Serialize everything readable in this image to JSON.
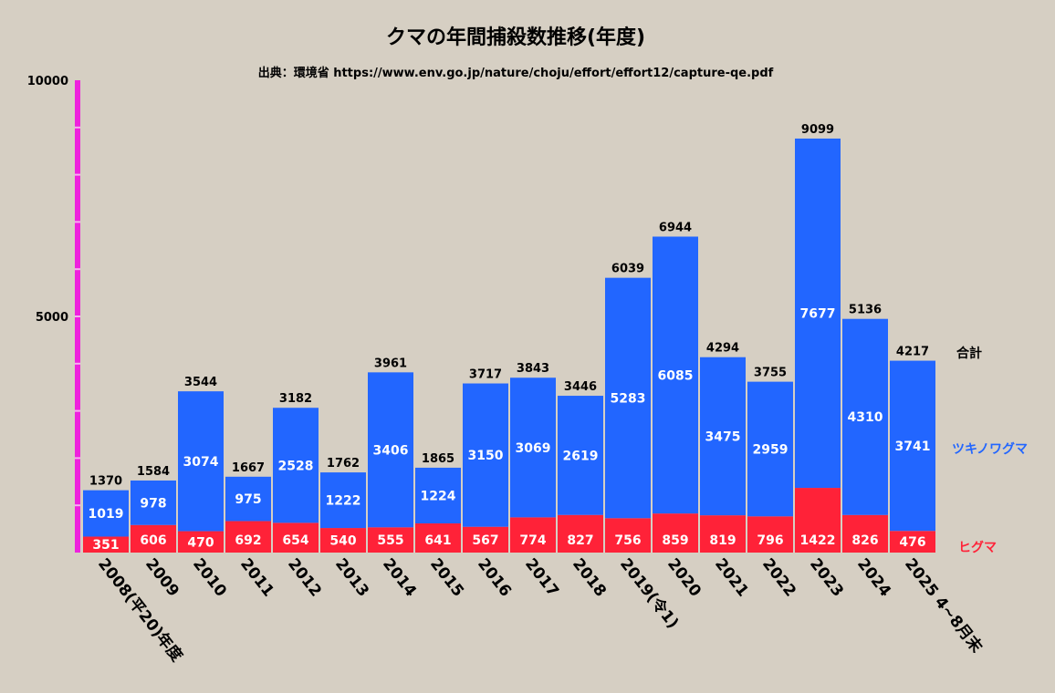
{
  "chart_data": {
    "type": "bar",
    "stacked": true,
    "title": "クマの年間捕殺数推移(年度)",
    "subtitle": "出典：環境省 https://www.env.go.jp/nature/choju/effort/effort12/capture-qe.pdf",
    "xlabel": "",
    "ylabel": "",
    "ylim": [
      0,
      10000
    ],
    "yticks": [
      {
        "value": 10000,
        "label": "10000"
      },
      {
        "value": 5000,
        "label": "5000"
      }
    ],
    "minor_tick_step": 1000,
    "grid": false,
    "categories": [
      "2008(平20)年度",
      "2009",
      "2010",
      "2011",
      "2012",
      "2013",
      "2014",
      "2015",
      "2016",
      "2017",
      "2018",
      "2019(令1)",
      "2020",
      "2021",
      "2022",
      "2023",
      "2024",
      "2025 4~8月末"
    ],
    "series": [
      {
        "name": "ヒグマ",
        "color": "#ff2238",
        "values": [
          351,
          606,
          470,
          692,
          654,
          540,
          555,
          641,
          567,
          774,
          827,
          756,
          859,
          819,
          796,
          1422,
          826,
          476
        ]
      },
      {
        "name": "ツキノワグマ",
        "color": "#2266ff",
        "values": [
          1019,
          978,
          3074,
          975,
          2528,
          1222,
          3406,
          1224,
          3150,
          3069,
          2619,
          5283,
          6085,
          3475,
          2959,
          7677,
          4310,
          3741
        ]
      }
    ],
    "totals": {
      "name": "合計",
      "values": [
        1370,
        1584,
        3544,
        1667,
        3182,
        1762,
        3961,
        1865,
        3717,
        3843,
        3446,
        6039,
        6944,
        4294,
        3755,
        9099,
        5136,
        4217
      ]
    },
    "legend_position": "right",
    "colors": {
      "background": "#d6cfc3",
      "axis": "#ee22dd",
      "total_label": "#000000"
    }
  }
}
